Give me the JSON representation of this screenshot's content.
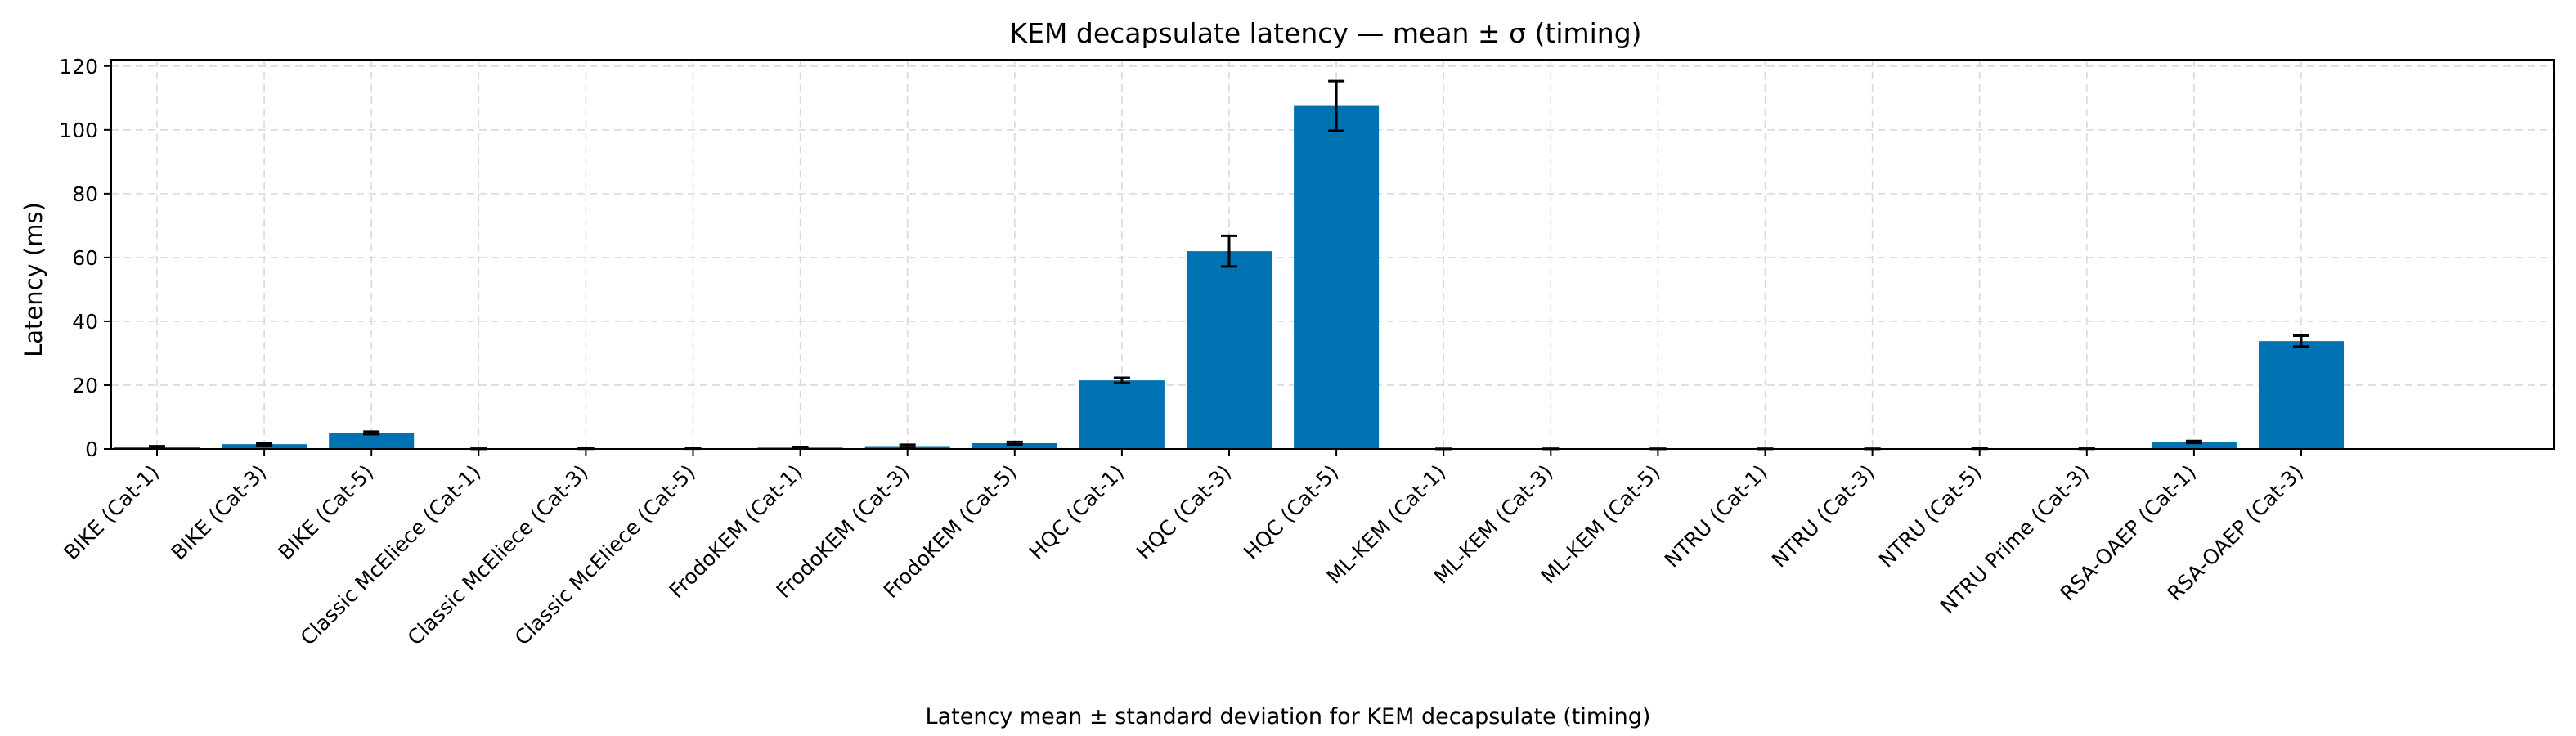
{
  "chart_data": {
    "type": "bar",
    "title": "KEM decapsulate latency — mean ± σ (timing)",
    "xlabel": "",
    "ylabel": "Latency (ms)",
    "caption": "Latency mean ± standard deviation for KEM decapsulate (timing)",
    "ylim": [
      0,
      122
    ],
    "yticks": [
      0,
      20,
      40,
      60,
      80,
      100,
      120
    ],
    "grid": true,
    "bar_color": "#0072b2",
    "categories": [
      "BIKE (Cat-1)",
      "BIKE (Cat-3)",
      "BIKE (Cat-5)",
      "Classic McEliece (Cat-1)",
      "Classic McEliece (Cat-3)",
      "Classic McEliece (Cat-5)",
      "FrodoKEM (Cat-1)",
      "FrodoKEM (Cat-3)",
      "FrodoKEM (Cat-5)",
      "HQC (Cat-1)",
      "HQC (Cat-3)",
      "HQC (Cat-5)",
      "ML-KEM (Cat-1)",
      "ML-KEM (Cat-3)",
      "ML-KEM (Cat-5)",
      "NTRU (Cat-1)",
      "NTRU (Cat-3)",
      "NTRU (Cat-5)",
      "NTRU Prime (Cat-3)",
      "RSA-OAEP (Cat-1)",
      "RSA-OAEP (Cat-3)"
    ],
    "values": [
      0.6,
      1.5,
      5.0,
      0.07,
      0.12,
      0.18,
      0.45,
      0.9,
      1.8,
      21.5,
      62.0,
      107.5,
      0.03,
      0.05,
      0.06,
      0.05,
      0.06,
      0.1,
      0.07,
      2.2,
      33.8
    ],
    "errors": [
      0.25,
      0.3,
      0.4,
      0.03,
      0.05,
      0.07,
      0.2,
      0.4,
      0.4,
      0.8,
      4.8,
      7.8,
      0.01,
      0.02,
      0.02,
      0.02,
      0.02,
      0.03,
      0.02,
      0.3,
      1.7
    ]
  }
}
